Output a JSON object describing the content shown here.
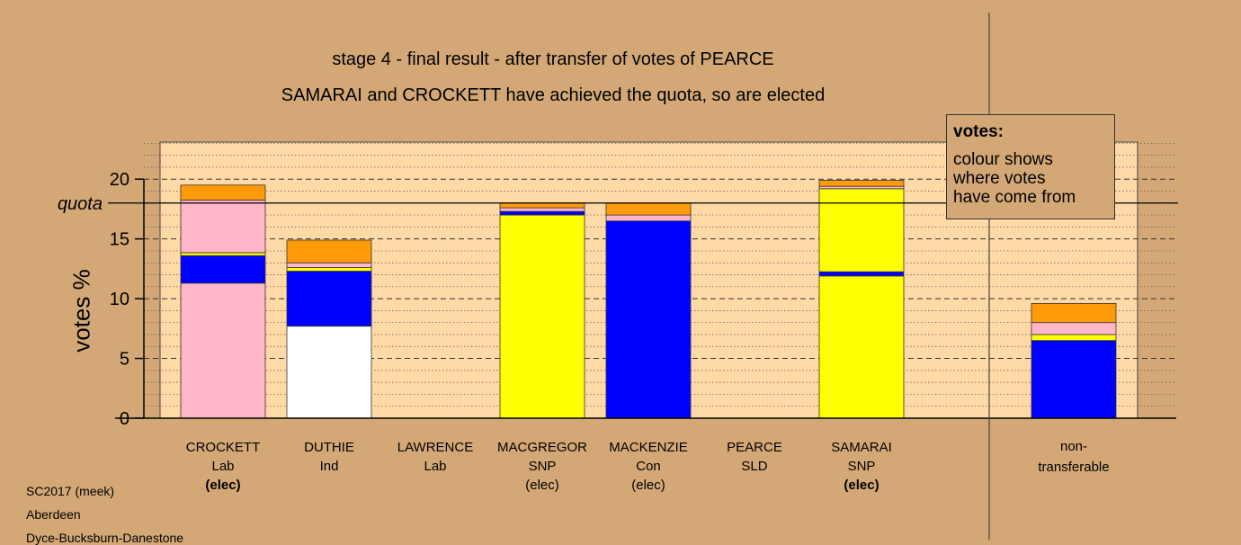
{
  "header": {
    "title": "stage 4 - final result - after transfer of votes of PEARCE",
    "subtitle": "SAMARAI and CROCKETT have achieved the quota, so are elected"
  },
  "legend": {
    "title": "votes:",
    "lines": [
      "colour shows",
      "where votes",
      "have come from"
    ]
  },
  "footer": [
    "SC2017 (meek)",
    "Aberdeen",
    "Dyce-Bucksburn-Danestone"
  ],
  "colors": {
    "pink": "#ffb6c8",
    "blue": "#0000ff",
    "yellow": "#ffff00",
    "orange": "#ff9a0a",
    "white": "#ffffff",
    "plot_bg": "#ffd9a6",
    "page_bg": "#d4a876"
  },
  "chart_data": {
    "type": "bar",
    "stacked": true,
    "ylabel": "votes %",
    "ylim": [
      0,
      23.1
    ],
    "yticks": [
      0,
      5,
      10,
      15,
      20
    ],
    "quota": {
      "label": "quota",
      "value": 18
    },
    "grid": true,
    "categories": [
      {
        "name": "CROCKETT",
        "party": "Lab",
        "status": "(elec)",
        "bold_status": true
      },
      {
        "name": "DUTHIE",
        "party": "Ind",
        "status": "",
        "bold_status": false
      },
      {
        "name": "LAWRENCE",
        "party": "Lab",
        "status": "",
        "bold_status": false
      },
      {
        "name": "MACGREGOR",
        "party": "SNP",
        "status": "(elec)",
        "bold_status": false
      },
      {
        "name": "MACKENZIE",
        "party": "Con",
        "status": "(elec)",
        "bold_status": false
      },
      {
        "name": "PEARCE",
        "party": "SLD",
        "status": "",
        "bold_status": false
      },
      {
        "name": "SAMARAI",
        "party": "SNP",
        "status": "(elec)",
        "bold_status": true
      },
      {
        "name": "non-",
        "party": "transferable",
        "status": "",
        "bold_status": false
      }
    ],
    "stacks": [
      [
        {
          "v": 11.3,
          "c": "pink"
        },
        {
          "v": 2.3,
          "c": "blue"
        },
        {
          "v": 0.25,
          "c": "yellow"
        },
        {
          "v": 4.4,
          "c": "pink"
        },
        {
          "v": 1.25,
          "c": "orange"
        }
      ],
      [
        {
          "v": 7.7,
          "c": "white"
        },
        {
          "v": 4.6,
          "c": "blue"
        },
        {
          "v": 0.3,
          "c": "yellow"
        },
        {
          "v": 0.4,
          "c": "pink"
        },
        {
          "v": 1.9,
          "c": "orange"
        }
      ],
      [],
      [
        {
          "v": 17.0,
          "c": "yellow"
        },
        {
          "v": 0.3,
          "c": "blue"
        },
        {
          "v": 0.3,
          "c": "pink"
        },
        {
          "v": 0.4,
          "c": "orange"
        }
      ],
      [
        {
          "v": 16.5,
          "c": "blue"
        },
        {
          "v": 0.5,
          "c": "pink"
        },
        {
          "v": 1.0,
          "c": "orange"
        }
      ],
      [],
      [
        {
          "v": 11.9,
          "c": "yellow"
        },
        {
          "v": 0.35,
          "c": "blue"
        },
        {
          "v": 6.95,
          "c": "yellow"
        },
        {
          "v": 0.2,
          "c": "pink"
        },
        {
          "v": 0.5,
          "c": "orange"
        }
      ],
      [
        {
          "v": 6.5,
          "c": "blue"
        },
        {
          "v": 0.5,
          "c": "yellow"
        },
        {
          "v": 1.0,
          "c": "pink"
        },
        {
          "v": 1.6,
          "c": "orange"
        }
      ]
    ]
  }
}
